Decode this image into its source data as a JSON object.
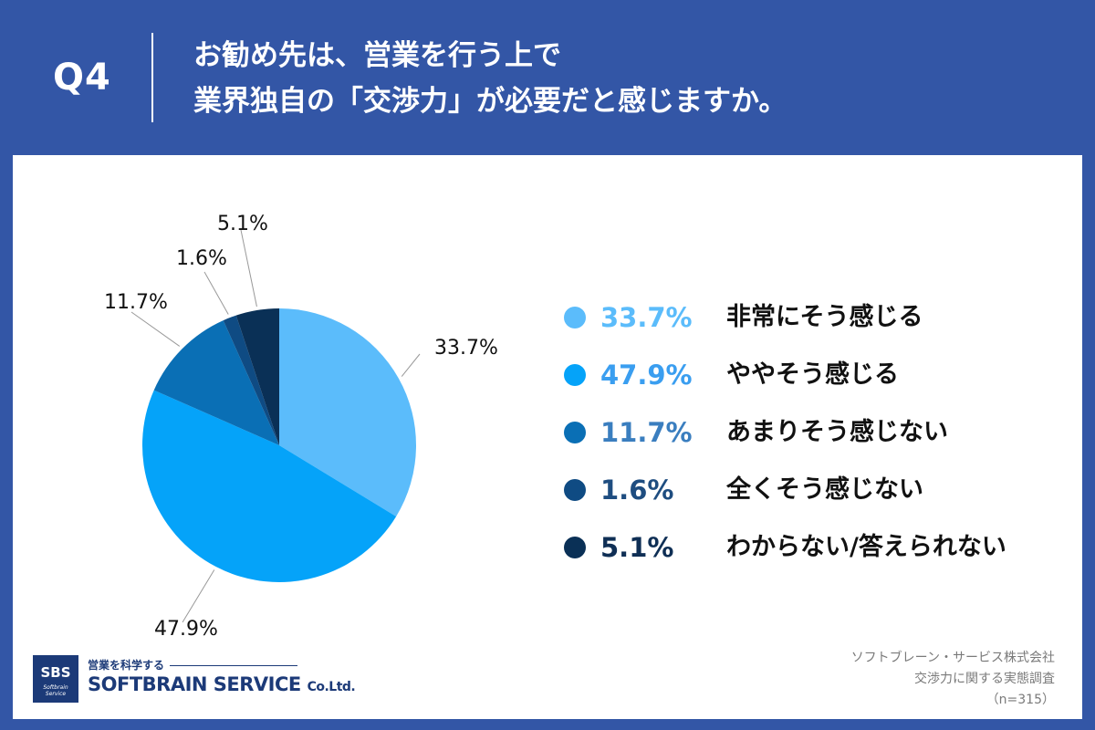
{
  "header": {
    "question": "Q4",
    "title_line1": "お勧め先は、営業を行う上で",
    "title_line2": "業界独自の「交渉力」が必要だと感じますか。"
  },
  "chart_data": {
    "type": "pie",
    "slices": [
      {
        "label": "非常にそう感じる",
        "value": 33.7,
        "display": "33.7%",
        "color": "#5bbcfb"
      },
      {
        "label": "ややそう感じる",
        "value": 47.9,
        "display": "47.9%",
        "color": "#05a3f9"
      },
      {
        "label": "あまりそう感じない",
        "value": 11.7,
        "display": "11.7%",
        "color": "#0a6fb5"
      },
      {
        "label": "全くそう感じない",
        "value": 1.6,
        "display": "1.6%",
        "color": "#0f4b83"
      },
      {
        "label": "わからない/答えられない",
        "value": 5.1,
        "display": "5.1%",
        "color": "#0a3056"
      }
    ],
    "legend_text_colors": [
      "#5bbcfb",
      "#3a9ef0",
      "#3a7ebf",
      "#1e4d80",
      "#0f2f55"
    ]
  },
  "footer": {
    "logo_abbr": "SBS",
    "logo_sub": "Softbrain Service",
    "logo_tagline": "営業を科学する",
    "logo_name": "SOFTBRAIN SERVICE",
    "logo_suffix": "Co.Ltd.",
    "source_line1": "ソフトブレーン・サービス株式会社",
    "source_line2": "交渉力に関する実態調査",
    "source_line3": "（n=315）"
  }
}
